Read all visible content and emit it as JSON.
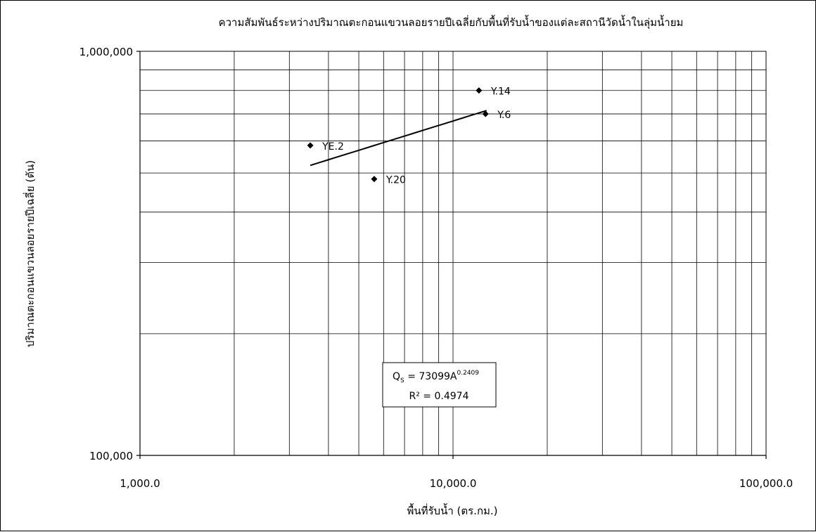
{
  "chart_data": {
    "type": "scatter",
    "title": "ความสัมพันธ์ระหว่างปริมาณตะกอนแขวนลอยรายปีเฉลี่ยกับพื้นที่รับน้ำของแต่ละสถานีวัดน้ำในลุ่มน้ำยม",
    "xlabel": "พื้นที่รับน้ำ (ตร.กม.)",
    "ylabel": "ปริมาณตะกอนแขวนลอยรายปีเฉลี่ย (ตัน)",
    "x_scale": "log",
    "y_scale": "log",
    "xlim": [
      1000,
      100000
    ],
    "ylim": [
      100000,
      1000000
    ],
    "x_ticks": [
      "1,000.0",
      "10,000.0",
      "100,000.0"
    ],
    "y_ticks": [
      "100,000",
      "1,000,000"
    ],
    "grid": true,
    "points": [
      {
        "label": "YE.2",
        "x": 3500,
        "y": 585000
      },
      {
        "label": "Y.20",
        "x": 5600,
        "y": 483000
      },
      {
        "label": "Y.14",
        "x": 12100,
        "y": 800000
      },
      {
        "label": "Y.6",
        "x": 12700,
        "y": 700000
      }
    ],
    "trendline": {
      "type": "power",
      "a": 73099,
      "b": 0.2409,
      "x_range": [
        3500,
        12800
      ]
    },
    "equation": {
      "q_main": "Q",
      "q_sub": "S",
      "eq_main": " = 73099A",
      "eq_sup": "0.2409",
      "r2": "R² = 0.4974"
    }
  }
}
